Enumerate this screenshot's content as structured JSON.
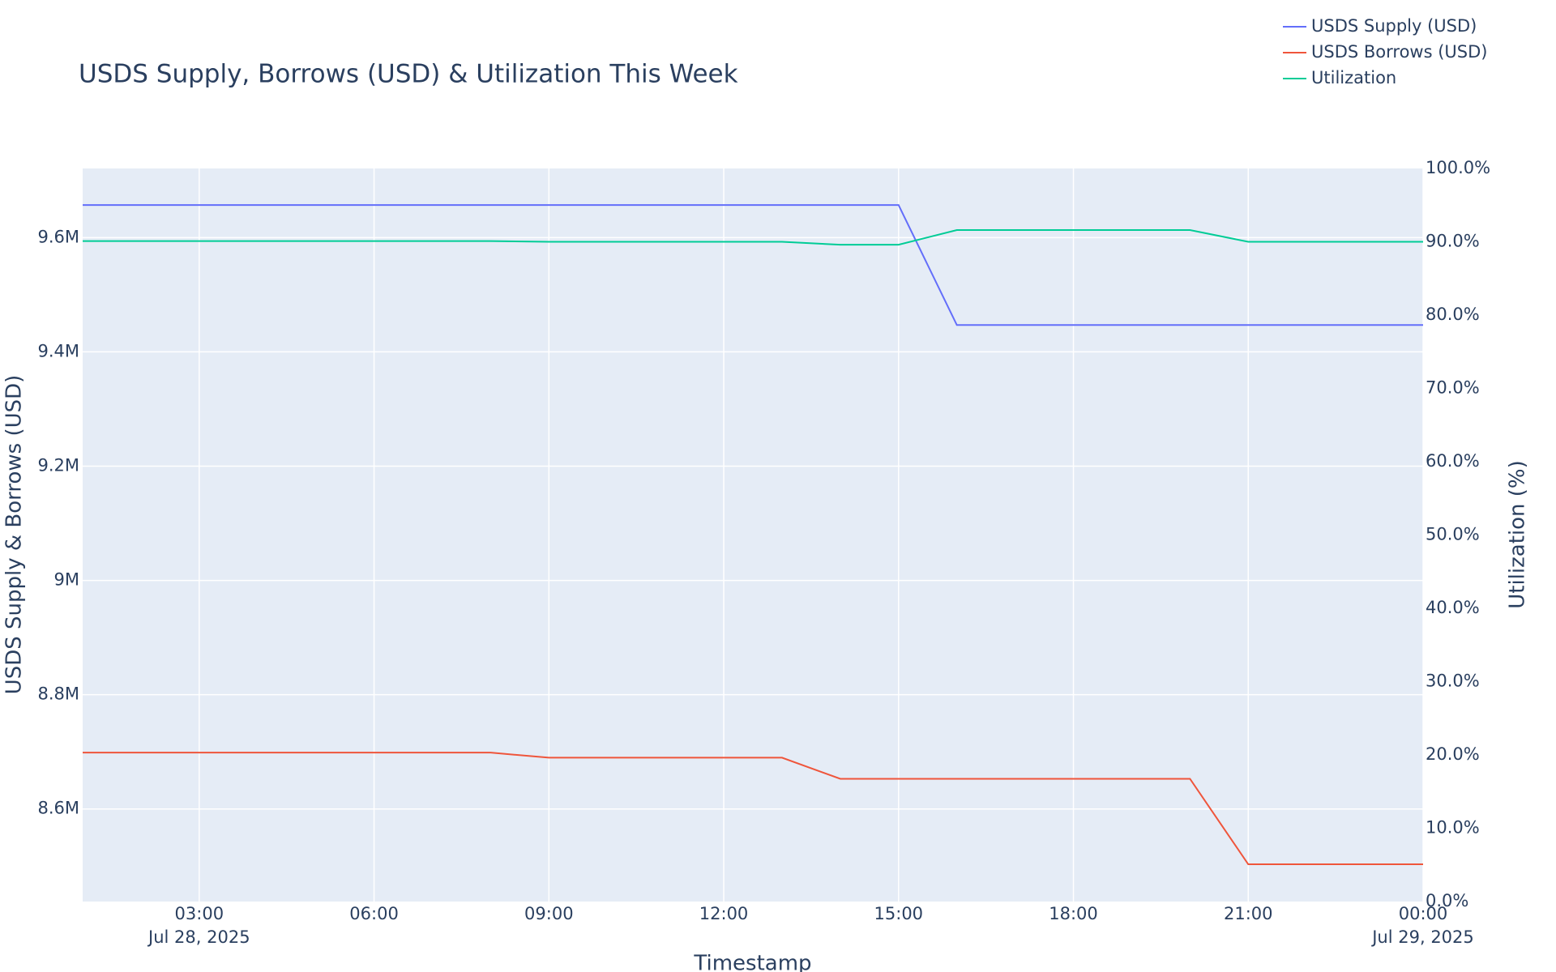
{
  "chart_data": {
    "type": "line",
    "title": "USDS Supply, Borrows (USD) & Utilization This Week",
    "xlabel": "Timestamp",
    "ylabel": "USDS Supply & Borrows (USD)",
    "y2label": "Utilization (%)",
    "x": [
      "2025-07-28T01:00",
      "2025-07-28T02:00",
      "2025-07-28T03:00",
      "2025-07-28T04:00",
      "2025-07-28T05:00",
      "2025-07-28T06:00",
      "2025-07-28T07:00",
      "2025-07-28T08:00",
      "2025-07-28T09:00",
      "2025-07-28T10:00",
      "2025-07-28T11:00",
      "2025-07-28T12:00",
      "2025-07-28T13:00",
      "2025-07-28T14:00",
      "2025-07-28T15:00",
      "2025-07-28T16:00",
      "2025-07-28T17:00",
      "2025-07-28T18:00",
      "2025-07-28T19:00",
      "2025-07-28T20:00",
      "2025-07-28T21:00",
      "2025-07-28T22:00",
      "2025-07-28T23:00",
      "2025-07-29T00:00"
    ],
    "series": [
      {
        "name": "USDS Supply (USD)",
        "color": "#636efa",
        "values": [
          9657000,
          9657000,
          9657000,
          9657000,
          9657000,
          9657000,
          9657000,
          9657000,
          9657000,
          9657000,
          9657000,
          9657000,
          9657000,
          9657000,
          9657000,
          9447000,
          9447000,
          9447000,
          9447000,
          9447000,
          9447000,
          9447000,
          9447000,
          9447000
        ]
      },
      {
        "name": "USDS Borrows (USD)",
        "color": "#ef553b",
        "values": [
          8698600,
          8698600,
          8698600,
          8698600,
          8698600,
          8698600,
          8698600,
          8698600,
          8689800,
          8689800,
          8689800,
          8689800,
          8689800,
          8652800,
          8652800,
          8652800,
          8652800,
          8652800,
          8652800,
          8652800,
          8503200,
          8503200,
          8503200,
          8503200
        ]
      },
      {
        "name": "Utilization",
        "color": "#00cc96",
        "axis": "y2",
        "values": [
          90.1,
          90.1,
          90.1,
          90.1,
          90.1,
          90.1,
          90.1,
          90.1,
          90.0,
          90.0,
          90.0,
          90.0,
          90.0,
          89.6,
          89.6,
          91.6,
          91.6,
          91.6,
          91.6,
          91.6,
          90.0,
          90.0,
          90.0,
          90.0
        ]
      }
    ],
    "xlim": [
      "2025-07-28T01:00",
      "2025-07-29T00:00"
    ],
    "xticks": [
      {
        "value": "2025-07-28T03:00",
        "label": "03:00"
      },
      {
        "value": "2025-07-28T06:00",
        "label": "06:00"
      },
      {
        "value": "2025-07-28T09:00",
        "label": "09:00"
      },
      {
        "value": "2025-07-28T12:00",
        "label": "12:00"
      },
      {
        "value": "2025-07-28T15:00",
        "label": "15:00"
      },
      {
        "value": "2025-07-28T18:00",
        "label": "18:00"
      },
      {
        "value": "2025-07-28T21:00",
        "label": "21:00"
      },
      {
        "value": "2025-07-29T00:00",
        "label": "00:00"
      }
    ],
    "xtick_dates": [
      {
        "value": "2025-07-28T03:00",
        "label": "Jul 28, 2025"
      },
      {
        "value": "2025-07-29T00:00",
        "label": "Jul 29, 2025"
      }
    ],
    "ylim": [
      8438000,
      9721000
    ],
    "yticks": [
      {
        "value": 8600000,
        "label": "8.6M"
      },
      {
        "value": 8800000,
        "label": "8.8M"
      },
      {
        "value": 9000000,
        "label": "9M"
      },
      {
        "value": 9200000,
        "label": "9.2M"
      },
      {
        "value": 9400000,
        "label": "9.4M"
      },
      {
        "value": 9600000,
        "label": "9.6M"
      }
    ],
    "y2lim": [
      0,
      100
    ],
    "y2ticks": [
      {
        "value": 0,
        "label": "0.0%"
      },
      {
        "value": 10,
        "label": "10.0%"
      },
      {
        "value": 20,
        "label": "20.0%"
      },
      {
        "value": 30,
        "label": "30.0%"
      },
      {
        "value": 40,
        "label": "40.0%"
      },
      {
        "value": 50,
        "label": "50.0%"
      },
      {
        "value": 60,
        "label": "60.0%"
      },
      {
        "value": 70,
        "label": "70.0%"
      },
      {
        "value": 80,
        "label": "80.0%"
      },
      {
        "value": 90,
        "label": "90.0%"
      },
      {
        "value": 100,
        "label": "100.0%"
      }
    ],
    "grid": true,
    "legend": "top-right"
  }
}
